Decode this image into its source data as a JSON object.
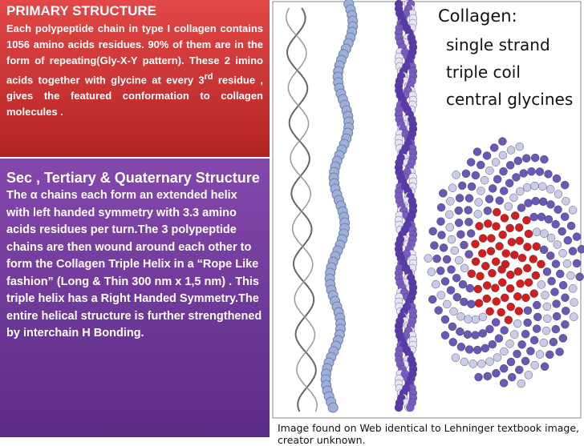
{
  "primary": {
    "title": "PRIMARY STRUCTURE",
    "body": [
      "Each polypeptide chain in type I collagen contains 1056 amino acids residues. 90% of them  are in the form of repeating(Gly-X-Y pattern). These 2 imino acids together with glycine at every 3",
      "rd",
      " residue , gives the featured conformation to collagen molecules ."
    ]
  },
  "secondary": {
    "title": "Sec , Tertiary & Quaternary Structure",
    "body": "The α chains each form an extended helix with left handed symmetry with 3.3 amino acids residues per turn.The 3 polypeptide chains are then wound around each other to form the Collagen Triple Helix in a “Rope Like fashion” (Long & Thin 300 nm x 1,5 nm) . This triple helix has a Right Handed Symmetry.The entire helical structure is further strengthened by interchain H Bonding."
  },
  "image": {
    "title": "Collagen:",
    "items": [
      "single strand",
      "triple coil",
      "central glycines"
    ],
    "caption": "Image found on Web identical to Lehninger textbook image, creator unknown."
  }
}
